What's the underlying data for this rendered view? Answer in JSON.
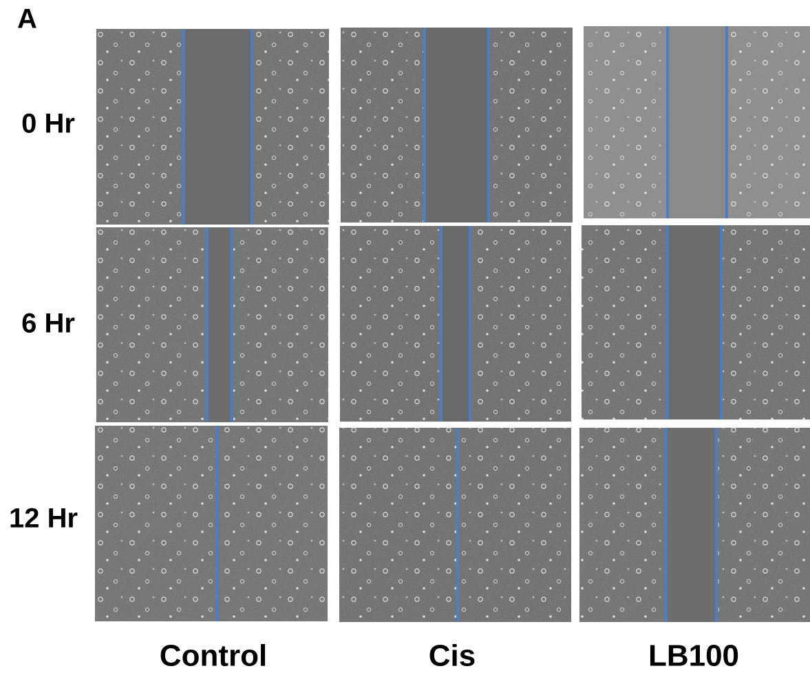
{
  "panel_label": "A",
  "rows": [
    "0 Hr",
    "6 Hr",
    "12 Hr"
  ],
  "columns": [
    "Control",
    "Cis",
    "LB100"
  ]
}
